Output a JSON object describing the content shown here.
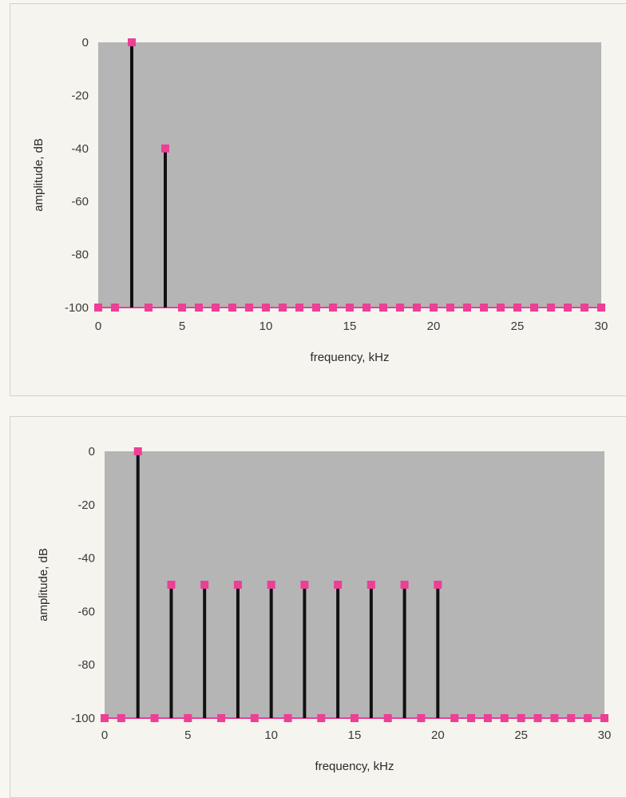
{
  "colors": {
    "plot_background": "#b5b5b5",
    "stem": "#111111",
    "marker": "#ec3f95",
    "baseline": "#ec3f95"
  },
  "chart_data": [
    {
      "type": "scatter",
      "style": "stem",
      "xlabel": "frequency, kHz",
      "ylabel": "amplitude, dB",
      "xlim": [
        0,
        30
      ],
      "ylim": [
        -100,
        0
      ],
      "xticks": [
        0,
        5,
        10,
        15,
        20,
        25,
        30
      ],
      "yticks": [
        0,
        -20,
        -40,
        -60,
        -80,
        -100
      ],
      "grid": false,
      "series": [
        {
          "x": [
            0,
            1,
            2,
            3,
            4,
            5,
            6,
            7,
            8,
            9,
            10,
            11,
            12,
            13,
            14,
            15,
            16,
            17,
            18,
            19,
            20,
            21,
            22,
            23,
            24,
            25,
            26,
            27,
            28,
            29,
            30
          ],
          "values": [
            -100,
            -100,
            0,
            -100,
            -40,
            -100,
            -100,
            -100,
            -100,
            -100,
            -100,
            -100,
            -100,
            -100,
            -100,
            -100,
            -100,
            -100,
            -100,
            -100,
            -100,
            -100,
            -100,
            -100,
            -100,
            -100,
            -100,
            -100,
            -100,
            -100,
            -100
          ]
        }
      ]
    },
    {
      "type": "scatter",
      "style": "stem",
      "xlabel": "frequency, kHz",
      "ylabel": "amplitude, dB",
      "xlim": [
        0,
        30
      ],
      "ylim": [
        -100,
        0
      ],
      "xticks": [
        0,
        5,
        10,
        15,
        20,
        25,
        30
      ],
      "yticks": [
        0,
        -20,
        -40,
        -60,
        -80,
        -100
      ],
      "grid": false,
      "series": [
        {
          "x": [
            0,
            1,
            2,
            3,
            4,
            5,
            6,
            7,
            8,
            9,
            10,
            11,
            12,
            13,
            14,
            15,
            16,
            17,
            18,
            19,
            20,
            21,
            22,
            23,
            24,
            25,
            26,
            27,
            28,
            29,
            30
          ],
          "values": [
            -100,
            -100,
            0,
            -100,
            -50,
            -100,
            -50,
            -100,
            -50,
            -100,
            -50,
            -100,
            -50,
            -100,
            -50,
            -100,
            -50,
            -100,
            -50,
            -100,
            -50,
            -100,
            -100,
            -100,
            -100,
            -100,
            -100,
            -100,
            -100,
            -100,
            -100
          ]
        }
      ]
    }
  ]
}
